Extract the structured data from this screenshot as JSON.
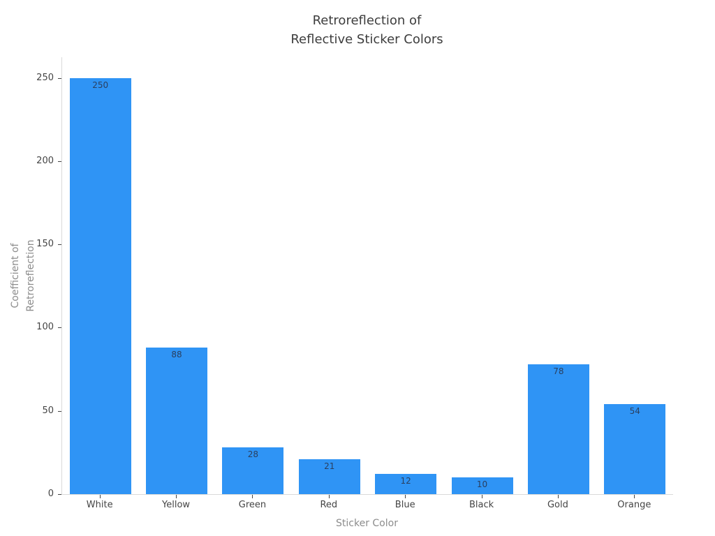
{
  "chart_data": {
    "type": "bar",
    "title_lines": [
      "Retroreflection of",
      "Reflective Sticker Colors"
    ],
    "title": "Retroreflection of Reflective Sticker Colors",
    "categories": [
      "White",
      "Yellow",
      "Green",
      "Red",
      "Blue",
      "Black",
      "Gold",
      "Orange"
    ],
    "values": [
      250,
      88,
      28,
      21,
      12,
      10,
      78,
      54
    ],
    "value_labels": [
      "250",
      "88",
      "28",
      "21",
      "12",
      "10",
      "78",
      "54"
    ],
    "xlabel": "Sticker Color",
    "ylabel": "Coefficient of Retroreflection",
    "ylabel_lines": [
      "Coefficient of",
      "Retroreflection"
    ],
    "yticks": [
      0,
      50,
      100,
      150,
      200,
      250
    ],
    "ylim": [
      0,
      262.4
    ],
    "grid": false,
    "legend_position": "none",
    "colors": {
      "bar": "#2f94f5",
      "value_label": "#2a3f5f",
      "title": "#3d3d3d",
      "tick_label": "#444444",
      "tick_mark": "#444444",
      "axis_title": "#8c8c8c",
      "axis_line": "#d9d9d9",
      "background": "#ffffff"
    }
  }
}
